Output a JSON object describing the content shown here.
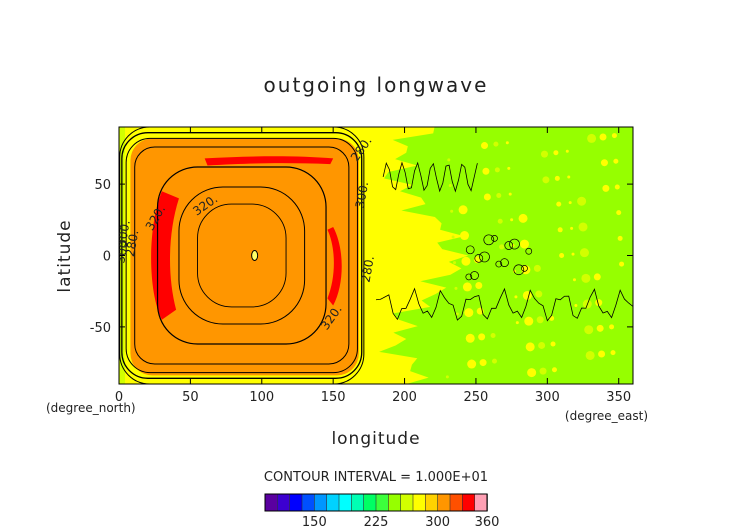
{
  "chart_data": {
    "type": "heatmap",
    "title": "outgoing longwave",
    "xlabel": "longitude",
    "ylabel": "latitude",
    "x_unit_label": "(degree_east)",
    "y_unit_label": "(degree_north)",
    "xlim": [
      0,
      360
    ],
    "ylim": [
      -90,
      90
    ],
    "x_ticks": [
      0,
      50,
      100,
      150,
      200,
      250,
      300,
      350
    ],
    "y_ticks": [
      -50,
      0,
      50
    ],
    "contour_interval_label": "CONTOUR INTERVAL = 1.000E+01",
    "contour_labels": [
      "280.",
      "300.",
      "320.",
      "320.",
      "280.",
      "300.",
      "320.",
      "300",
      "280."
    ],
    "colorbar": {
      "min": 90,
      "max": 360,
      "step": 15,
      "tick_values": [
        150,
        225,
        300,
        360
      ],
      "colors": [
        "#5a00a0",
        "#3c00d0",
        "#0000ff",
        "#0050ff",
        "#0096ff",
        "#00d2ff",
        "#00ffff",
        "#00ffb4",
        "#00ff64",
        "#3cff3c",
        "#96ff00",
        "#d2ff00",
        "#ffff00",
        "#ffd200",
        "#ff9600",
        "#ff5000",
        "#ff0000",
        "#ffa0b4"
      ]
    },
    "field_description_values": {
      "center_lon": 95,
      "center_lat": 0,
      "peak_value": 335,
      "box_lon_range": [
        0,
        175
      ],
      "background_band_west": [
        180,
        250
      ],
      "background_east": [
        250,
        360
      ]
    }
  }
}
